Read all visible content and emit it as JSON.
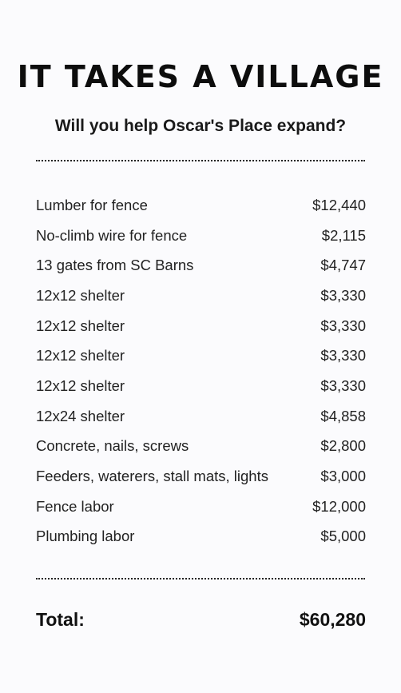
{
  "header": {
    "title": "IT TAKES A VILLAGE",
    "subtitle": "Will you help Oscar's Place expand?"
  },
  "items": [
    {
      "label": "Lumber for fence",
      "amount": "$12,440"
    },
    {
      "label": "No-climb wire for fence",
      "amount": "$2,115"
    },
    {
      "label": "13 gates from SC Barns",
      "amount": "$4,747"
    },
    {
      "label": "12x12 shelter",
      "amount": "$3,330"
    },
    {
      "label": "12x12 shelter",
      "amount": "$3,330"
    },
    {
      "label": "12x12 shelter",
      "amount": "$3,330"
    },
    {
      "label": "12x12 shelter",
      "amount": "$3,330"
    },
    {
      "label": "12x24 shelter",
      "amount": "$4,858"
    },
    {
      "label": "Concrete, nails, screws",
      "amount": "$2,800"
    },
    {
      "label": "Feeders, waterers, stall mats, lights",
      "amount": "$3,000"
    },
    {
      "label": "Fence labor",
      "amount": "$12,000"
    },
    {
      "label": "Plumbing labor",
      "amount": "$5,000"
    }
  ],
  "total": {
    "label": "Total:",
    "amount": "$60,280"
  }
}
